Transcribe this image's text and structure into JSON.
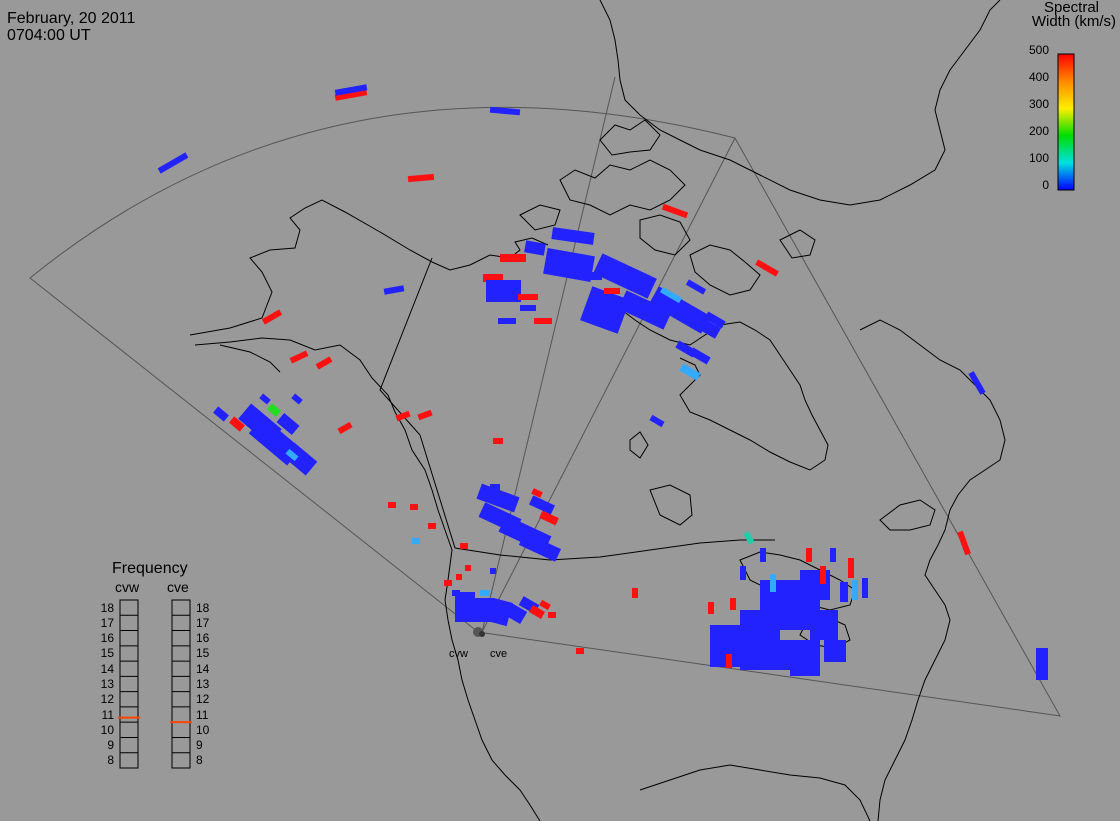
{
  "header": {
    "date": "February, 20 2011",
    "time": "0704:00 UT"
  },
  "colorbar": {
    "title_line1": "Spectral",
    "title_line2": "Width (km/s)",
    "ticks": [
      "500",
      "400",
      "300",
      "200",
      "100",
      "0"
    ],
    "colors": [
      "#ff0000",
      "#ff8800",
      "#ffff00",
      "#00dd00",
      "#00e0e0",
      "#0000ff"
    ]
  },
  "radars": {
    "sites": [
      "cvw",
      "cve"
    ]
  },
  "frequency": {
    "title": "Frequency",
    "left_label": "cvw",
    "right_label": "cve",
    "levels": [
      "18",
      "17",
      "16",
      "15",
      "14",
      "13",
      "12",
      "11",
      "10",
      "9",
      "8"
    ],
    "cvw_value": 10.8,
    "cve_value": 10.5,
    "marker_color": "#ff4400"
  },
  "colors": {
    "background": "#999999",
    "coast": "#000000",
    "fov": "#555555",
    "blue": "#2222ff",
    "red": "#ff1111",
    "lightblue": "#33aaff",
    "cyan": "#22dddd",
    "green": "#22dd22",
    "teal": "#22ccaa"
  }
}
